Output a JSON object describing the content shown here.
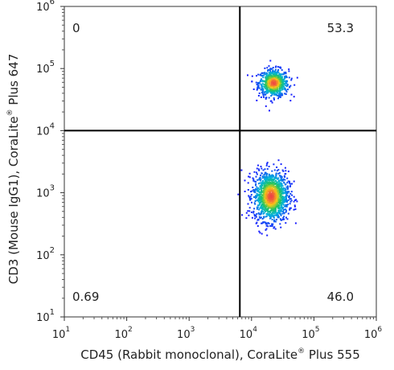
{
  "chart_data": {
    "type": "scatter",
    "subtype": "flow-cytometry-density-plot",
    "xscale": "log",
    "yscale": "log",
    "xlim": [
      10,
      1000000
    ],
    "ylim": [
      10,
      1000000
    ],
    "x_ticks": [
      {
        "base": "10",
        "exp": "1"
      },
      {
        "base": "10",
        "exp": "2"
      },
      {
        "base": "10",
        "exp": "3"
      },
      {
        "base": "10",
        "exp": "4"
      },
      {
        "base": "10",
        "exp": "5"
      },
      {
        "base": "10",
        "exp": "6"
      }
    ],
    "y_ticks": [
      {
        "base": "10",
        "exp": "1"
      },
      {
        "base": "10",
        "exp": "2"
      },
      {
        "base": "10",
        "exp": "3"
      },
      {
        "base": "10",
        "exp": "4"
      },
      {
        "base": "10",
        "exp": "5"
      },
      {
        "base": "10",
        "exp": "6"
      }
    ],
    "xlabel": {
      "pre": "CD45 (Rabbit monoclonal), CoraLite",
      "reg": "®",
      "post": " Plus 555"
    },
    "ylabel": {
      "pre": "CD3 (Mouse IgG1), CoraLite",
      "reg": "®",
      "post": " Plus 647"
    },
    "gates": {
      "x": 6500,
      "y": 10000
    },
    "quadrants": {
      "upper_left": "0",
      "upper_right": "53.3",
      "lower_left": "0.69",
      "lower_right": "46.0"
    },
    "populations": [
      {
        "name": "",
        "center": [
          22000,
          60000
        ],
        "spread": [
          0.12,
          0.11
        ],
        "count": 700
      },
      {
        "name": "",
        "center": [
          20000,
          900
        ],
        "spread": [
          0.14,
          0.2
        ],
        "count": 1300
      }
    ],
    "colors": {
      "density_low": "#1a1aff",
      "density_mid": "#22c55e",
      "density_high": "#ef4444",
      "gate_line": "#000000",
      "axis": "#333333"
    }
  }
}
